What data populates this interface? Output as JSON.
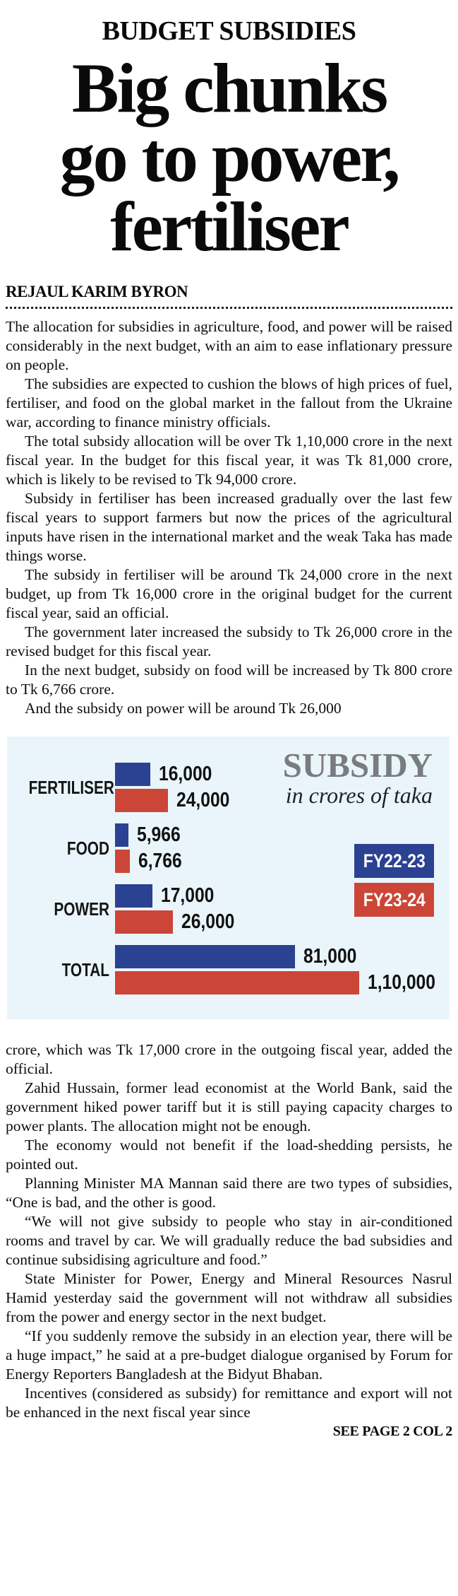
{
  "article": {
    "kicker": "BUDGET SUBSIDIES",
    "headline_lines": [
      "Big chunks",
      "go to power,",
      "fertiliser"
    ],
    "headline_text": "Big chunks go to power, fertiliser",
    "byline": "REJAUL KARIM BYRON",
    "paragraphs_before_chart": [
      "The allocation for subsidies in agriculture, food, and power will be raised considerably in the next budget, with an aim to ease inflationary pressure on people.",
      "The subsidies are expected to cushion the blows of high prices of fuel, fertiliser, and food on the global market in the fallout from the Ukraine war, according to finance ministry officials.",
      "The total subsidy allocation will be over Tk 1,10,000 crore in the next fiscal year. In the budget for this fiscal year, it was Tk 81,000 crore, which is likely to be revised to Tk 94,000 crore.",
      "Subsidy in fertiliser has been increased gradually over the last few fiscal years to support farmers but now the prices of the agricultural inputs have risen in the international market and the weak Taka has made things worse.",
      "The subsidy in fertiliser will be around Tk 24,000 crore in the next budget, up from Tk 16,000 crore in the original budget for the current fiscal year, said an official.",
      "The government later increased the subsidy to Tk 26,000 crore in the revised budget for this fiscal year.",
      "In the next budget, subsidy on food will be increased by Tk 800 crore to Tk 6,766 crore.",
      "And the subsidy on power will be around Tk 26,000"
    ],
    "paragraphs_after_chart": [
      "crore, which was Tk 17,000 crore in the outgoing fiscal year, added the official.",
      "Zahid Hussain, former lead economist at the World Bank, said the government hiked power tariff but it is still paying capacity charges to power plants. The allocation might not be enough.",
      "The economy would not benefit if the load-shedding persists, he pointed out.",
      "Planning Minister MA Mannan said there are two types of subsidies, “One is bad, and the other is good.",
      "“We will not give subsidy to people who stay in air-conditioned rooms and travel by car. We will gradually reduce the bad subsidies and continue subsidising agriculture and food.”",
      "State Minister for Power, Energy and Mineral Resources Nasrul Hamid yesterday said the government will not withdraw all subsidies from the power and energy sector in the next budget.",
      "“If you suddenly remove the subsidy in an election year, there will be a huge impact,” he said at a pre-budget dialogue organised by Forum for Energy Reporters Bangladesh at the Bidyut Bhaban.",
      "Incentives (considered as subsidy) for remittance and export will not be enhanced in the next fiscal year since"
    ],
    "continuation": "SEE PAGE 2 COL 2"
  },
  "chart_data": {
    "type": "bar",
    "orientation": "horizontal",
    "title": "SUBSIDY",
    "subtitle": "in crores of taka",
    "categories": [
      "FERTILISER",
      "FOOD",
      "POWER",
      "TOTAL"
    ],
    "series": [
      {
        "name": "FY22-23",
        "color": "#2b4191",
        "values": [
          16000,
          5966,
          17000,
          81000
        ],
        "value_labels": [
          "16,000",
          "5,966",
          "17,000",
          "81,000"
        ]
      },
      {
        "name": "FY23-24",
        "color": "#cc4637",
        "values": [
          24000,
          6766,
          26000,
          110000
        ],
        "value_labels": [
          "24,000",
          "6,766",
          "26,000",
          "1,10,000"
        ]
      }
    ],
    "xlim": [
      0,
      110000
    ],
    "legend_position": "right",
    "grid": false,
    "background": "#e9f5fb"
  },
  "colors": {
    "bar_blue": "#2b4191",
    "bar_red": "#cc4637",
    "chart_background": "#e9f5fb",
    "chart_title_gray": "#7a7b7e",
    "text": "#0d0d0d"
  }
}
